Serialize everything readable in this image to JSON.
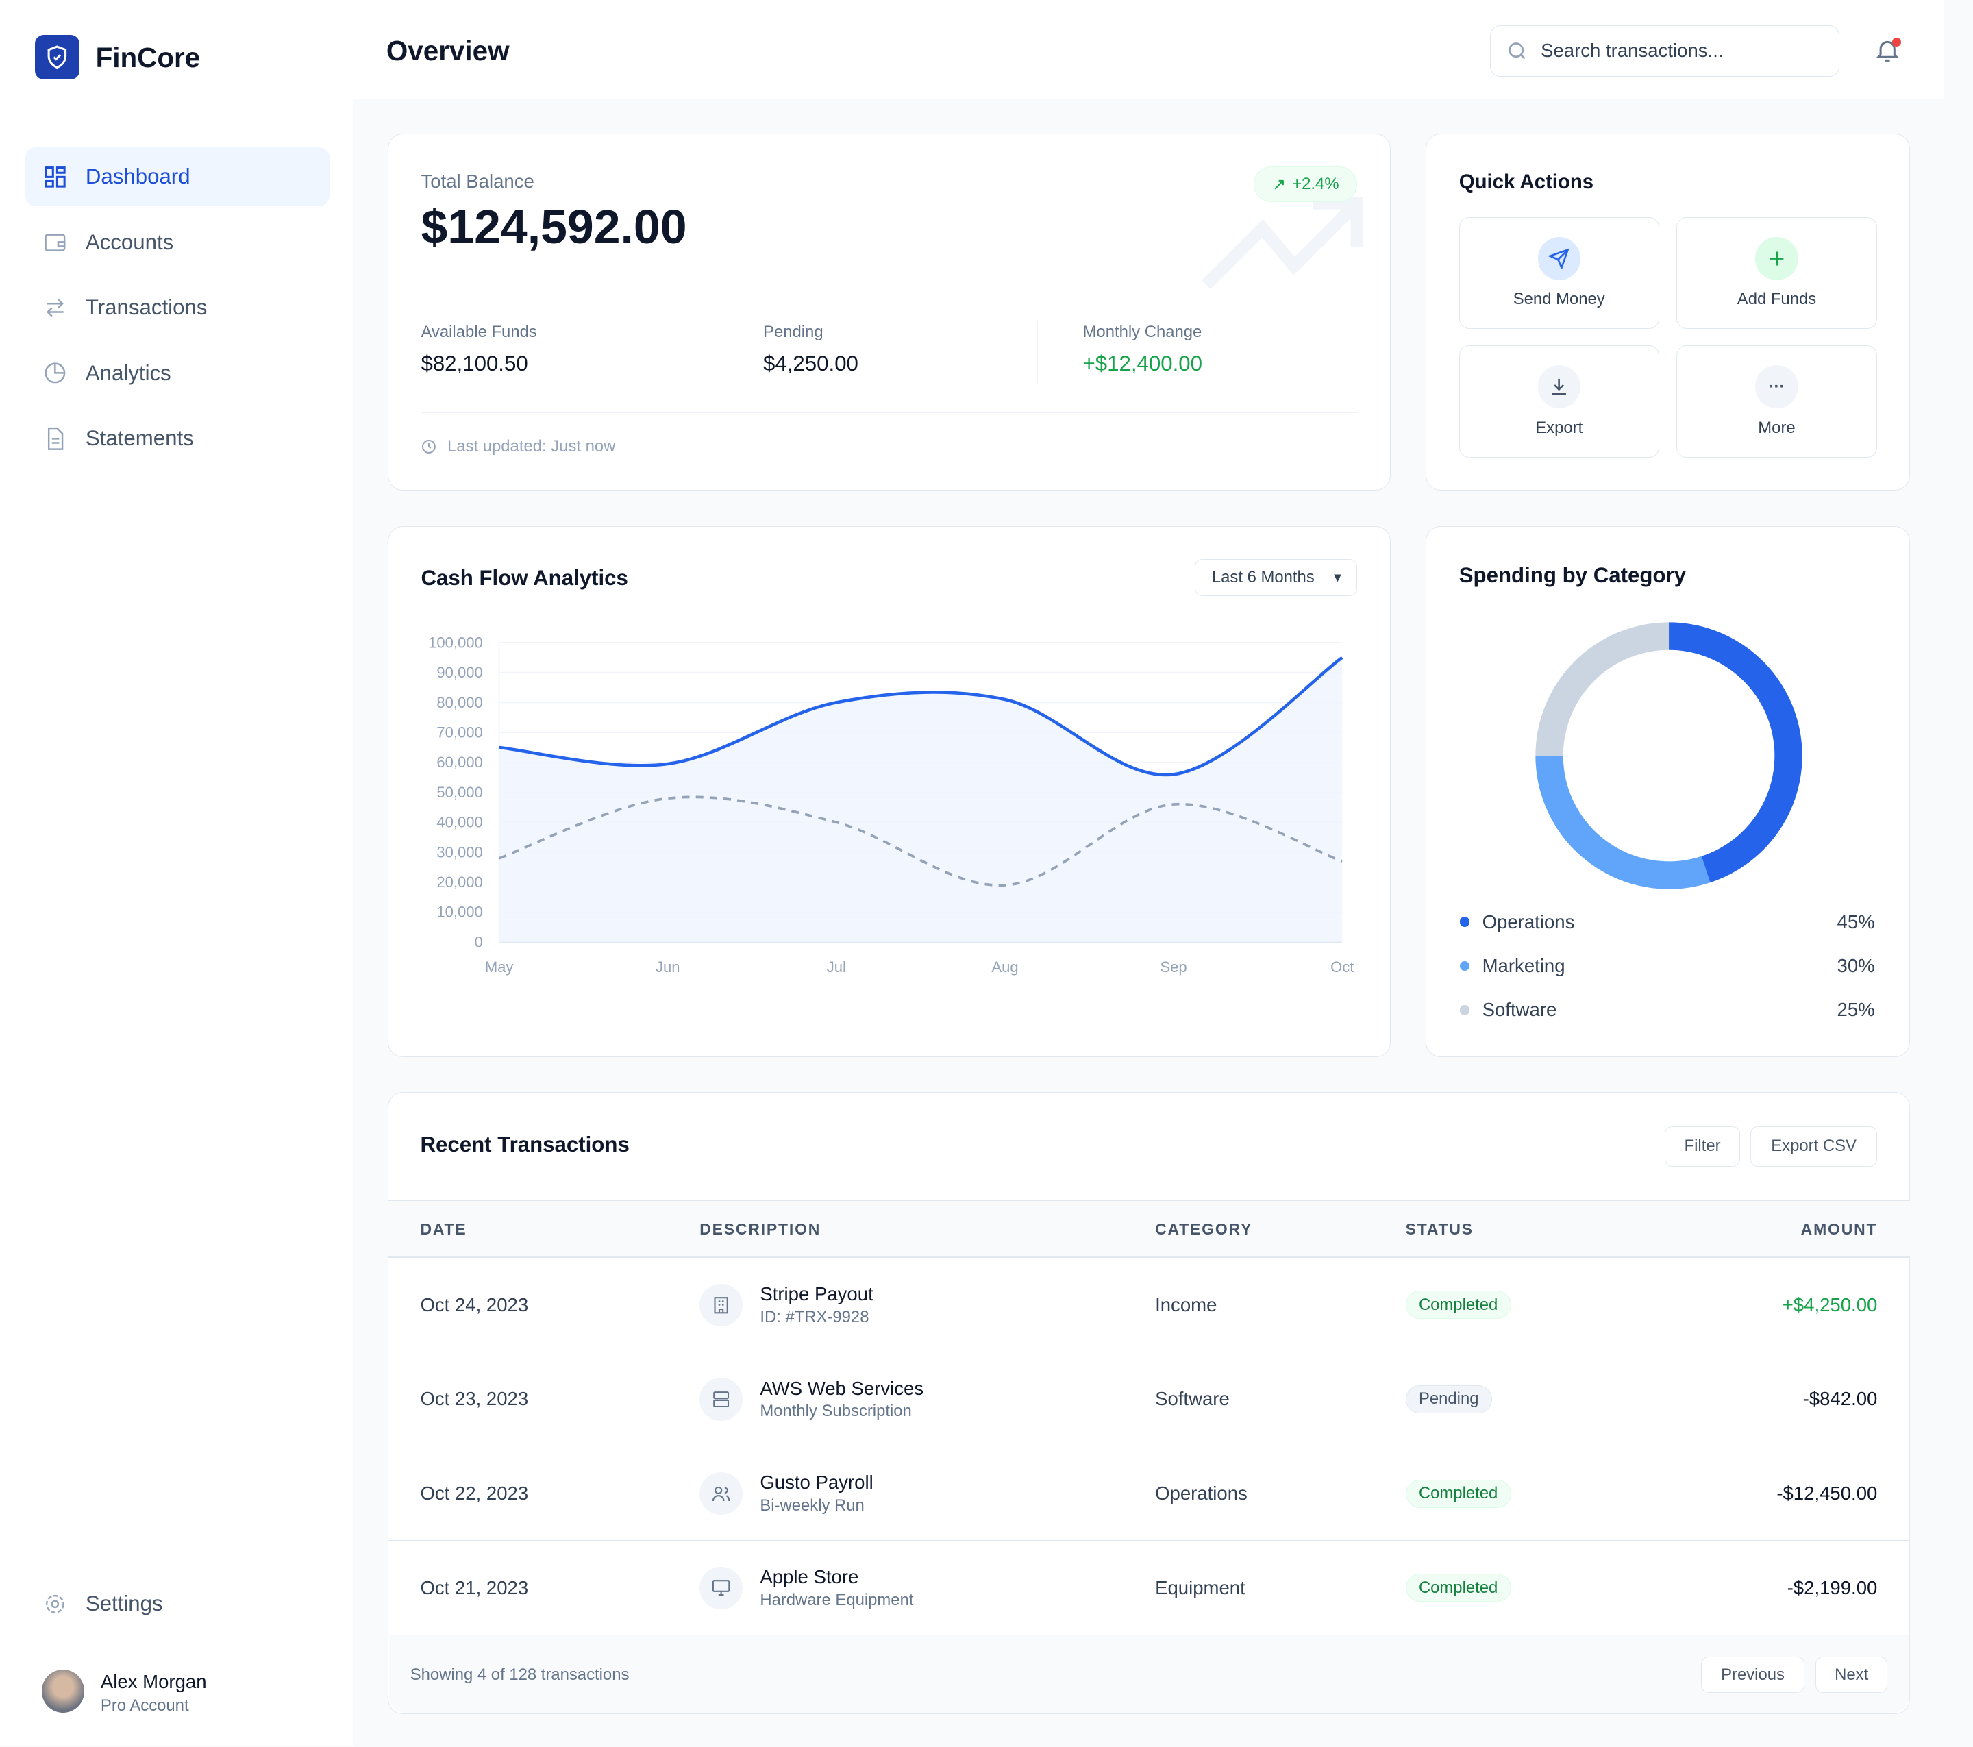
{
  "brand": "FinCore",
  "sidebar": {
    "items": [
      {
        "label": "Dashboard",
        "icon": "grid-icon",
        "active": true
      },
      {
        "label": "Accounts",
        "icon": "wallet-icon"
      },
      {
        "label": "Transactions",
        "icon": "arrows-icon"
      },
      {
        "label": "Analytics",
        "icon": "pie-icon"
      },
      {
        "label": "Statements",
        "icon": "document-icon"
      }
    ],
    "settings": "Settings",
    "user": {
      "name": "Alex Morgan",
      "plan": "Pro Account"
    }
  },
  "header": {
    "title": "Overview",
    "search_placeholder": "Search transactions..."
  },
  "balance": {
    "label": "Total Balance",
    "value": "$124,592.00",
    "badge": "+2.4%",
    "stats": [
      {
        "label": "Available Funds",
        "value": "$82,100.50"
      },
      {
        "label": "Pending",
        "value": "$4,250.00"
      },
      {
        "label": "Monthly Change",
        "value": "+$12,400.00"
      }
    ],
    "updated": "Last updated: Just now"
  },
  "quick_actions": {
    "title": "Quick Actions",
    "items": [
      {
        "label": "Send Money",
        "icon": "send-icon"
      },
      {
        "label": "Add Funds",
        "icon": "plus-icon"
      },
      {
        "label": "Export",
        "icon": "download-icon"
      },
      {
        "label": "More",
        "icon": "more-icon"
      }
    ]
  },
  "cashflow": {
    "title": "Cash Flow Analytics",
    "range": "Last 6 Months"
  },
  "chart_data": [
    {
      "type": "line",
      "x": [
        "May",
        "Jun",
        "Jul",
        "Aug",
        "Sep",
        "Oct"
      ],
      "ylim": [
        0,
        100000
      ],
      "yticks": [
        0,
        10000,
        20000,
        30000,
        40000,
        50000,
        60000,
        70000,
        80000,
        90000,
        100000
      ],
      "ytick_labels": [
        "0",
        "10,000",
        "20,000",
        "30,000",
        "40,000",
        "50,000",
        "60,000",
        "70,000",
        "80,000",
        "90,000",
        "100,000"
      ],
      "grid": true,
      "series": [
        {
          "values": [
            65000,
            59500,
            80000,
            81000,
            56000,
            95000
          ],
          "color": "#2563eb",
          "style": "solid",
          "fill": true
        },
        {
          "values": [
            28000,
            48000,
            40000,
            19000,
            46000,
            27000
          ],
          "color": "#94a3b8",
          "style": "dashed"
        }
      ]
    },
    {
      "type": "pie",
      "title": "Spending by Category",
      "donut": true,
      "categories": [
        "Operations",
        "Marketing",
        "Software"
      ],
      "values": [
        45,
        30,
        25
      ],
      "labels": [
        "45%",
        "30%",
        "25%"
      ],
      "colors": [
        "#2563eb",
        "#60a5fa",
        "#cbd5e1"
      ]
    }
  ],
  "transactions": {
    "title": "Recent Transactions",
    "filter": "Filter",
    "export": "Export CSV",
    "columns": [
      "DATE",
      "DESCRIPTION",
      "CATEGORY",
      "STATUS",
      "AMOUNT"
    ],
    "rows": [
      {
        "date": "Oct 24, 2023",
        "name": "Stripe Payout",
        "sub": "ID: #TRX-9928",
        "category": "Income",
        "status": "Completed",
        "amount": "+$4,250.00",
        "icon": "building-icon"
      },
      {
        "date": "Oct 23, 2023",
        "name": "AWS Web Services",
        "sub": "Monthly Subscription",
        "category": "Software",
        "status": "Pending",
        "amount": "-$842.00",
        "icon": "server-icon"
      },
      {
        "date": "Oct 22, 2023",
        "name": "Gusto Payroll",
        "sub": "Bi-weekly Run",
        "category": "Operations",
        "status": "Completed",
        "amount": "-$12,450.00",
        "icon": "users-icon"
      },
      {
        "date": "Oct 21, 2023",
        "name": "Apple Store",
        "sub": "Hardware Equipment",
        "category": "Equipment",
        "status": "Completed",
        "amount": "-$2,199.00",
        "icon": "monitor-icon"
      }
    ],
    "footer": "Showing 4 of 128 transactions",
    "prev": "Previous",
    "next": "Next"
  },
  "colors": {
    "accent": "#2563eb",
    "positive": "#16a34a"
  }
}
